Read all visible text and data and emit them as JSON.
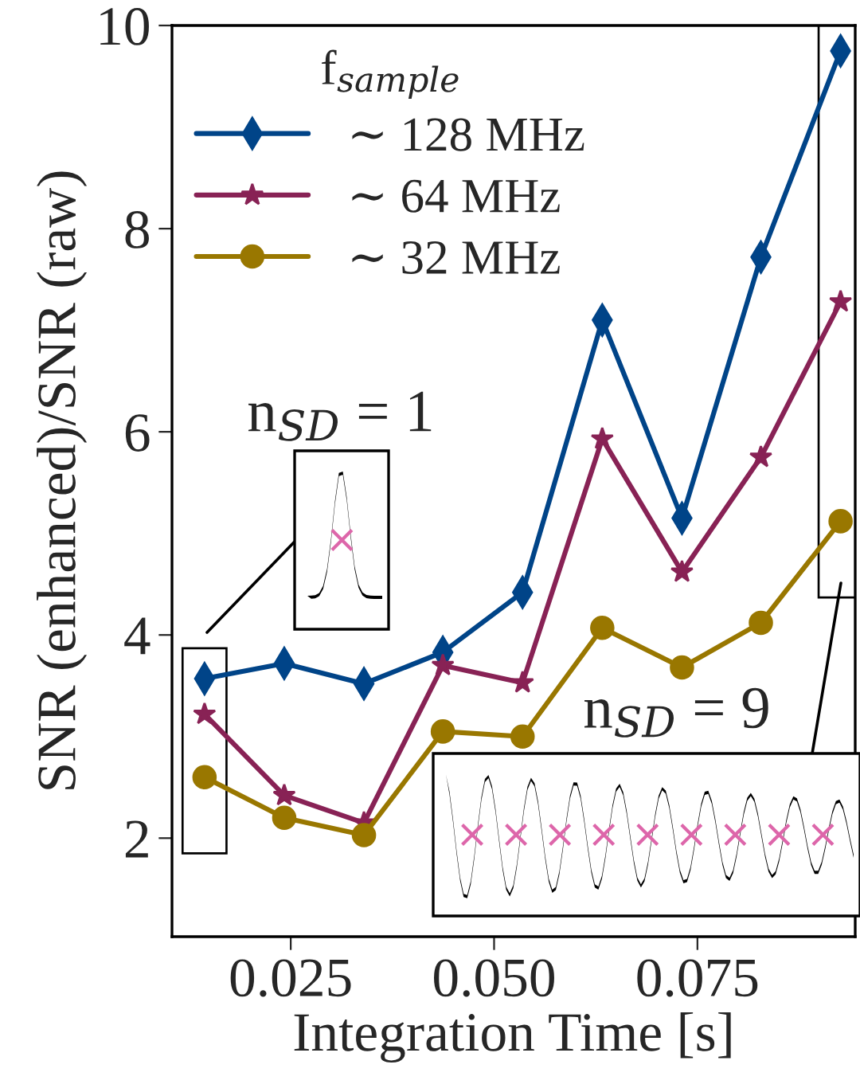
{
  "chart_data": {
    "type": "line",
    "xlabel": "Integration Time [s]",
    "ylabel": "SNR (enhanced)/SNR (raw)",
    "legend_title": "f$_{sample}$",
    "legend": "top left",
    "grid": false,
    "x": [
      0.0144,
      0.0242,
      0.034,
      0.0437,
      0.0535,
      0.0633,
      0.0731,
      0.0828,
      0.0926
    ],
    "series": [
      {
        "name": "∼ 128 MHz",
        "color": "#004488",
        "marker": "diamond",
        "values": [
          3.57,
          3.72,
          3.52,
          3.83,
          4.42,
          7.1,
          5.15,
          7.72,
          9.75
        ]
      },
      {
        "name": "∼ 64 MHz",
        "color": "#882255",
        "marker": "star",
        "values": [
          3.22,
          2.42,
          2.15,
          3.7,
          3.53,
          5.93,
          4.62,
          5.75,
          7.28
        ]
      },
      {
        "name": "∼ 32 MHz",
        "color": "#997700",
        "marker": "circle",
        "values": [
          2.6,
          2.2,
          2.03,
          3.05,
          3.0,
          4.07,
          3.68,
          4.12,
          5.12
        ]
      }
    ],
    "xlim": [
      0.0104,
      0.0944
    ],
    "ylim": [
      1.03,
      10.0
    ],
    "xticks": [
      {
        "value": 0.025,
        "label": "0.025"
      },
      {
        "value": 0.05,
        "label": "0.050"
      },
      {
        "value": 0.075,
        "label": "0.075"
      }
    ],
    "yticks": [
      2,
      4,
      6,
      8,
      10
    ],
    "annotations": [
      "n$_{SD}$ = 1",
      "n$_{SD}$ = 9"
    ]
  }
}
